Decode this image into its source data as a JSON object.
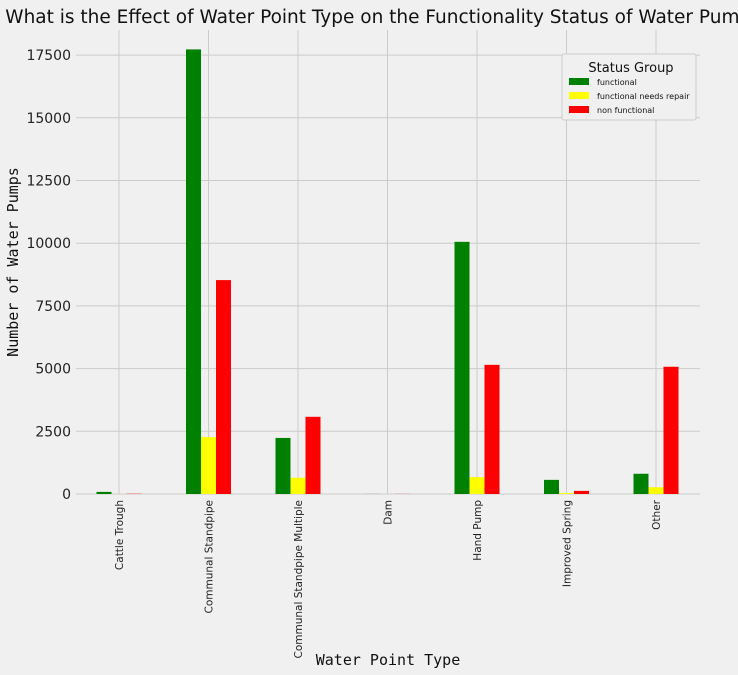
{
  "chart_data": {
    "type": "bar",
    "title": "What is the Effect of Water Point Type on the Functionality Status of Water Pumps?",
    "xlabel": "Water Point Type",
    "ylabel": "Number of Water Pumps",
    "categories": [
      "Cattle Trough",
      "Communal Standpipe",
      "Communal Standpipe Multiple",
      "Dam",
      "Hand Pump",
      "Improved Spring",
      "Other"
    ],
    "series": [
      {
        "name": "functional",
        "color": "#008000",
        "values": [
          84,
          17726,
          2235,
          3,
          10054,
          563,
          807
        ]
      },
      {
        "name": "functional needs repair",
        "color": "#ffff00",
        "values": [
          2,
          2267,
          648,
          0,
          672,
          41,
          268
        ]
      },
      {
        "name": "non functional",
        "color": "#ff0000",
        "values": [
          10,
          8528,
          3078,
          4,
          5150,
          124,
          5073
        ]
      }
    ],
    "yticks": [
      0,
      2500,
      5000,
      7500,
      10000,
      12500,
      15000,
      17500
    ],
    "ytick_labels": [
      "0",
      "2500",
      "5000",
      "7500",
      "10000",
      "12500",
      "15000",
      "17500"
    ],
    "ylim": [
      0,
      18500
    ],
    "grid": true,
    "legend": {
      "title": "Status Group",
      "placement": "top-right"
    }
  }
}
